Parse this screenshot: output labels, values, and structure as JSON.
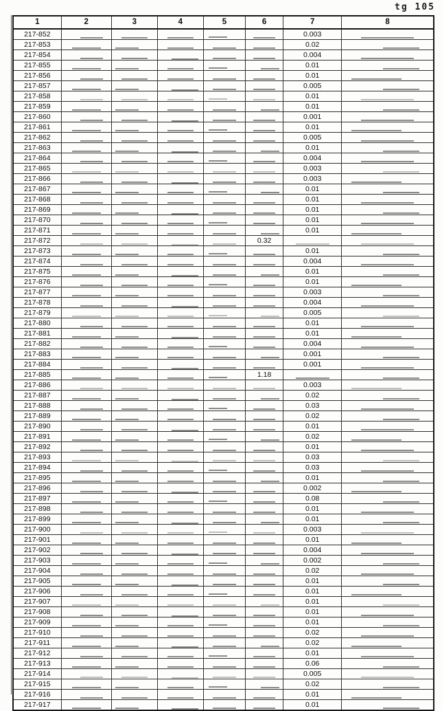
{
  "stamp": "tg 105",
  "table": {
    "headers": [
      "1",
      "2",
      "3",
      "4",
      "5",
      "6",
      "7",
      "8"
    ],
    "rows": [
      {
        "label": "217-852",
        "c6": "",
        "c7": "0.003"
      },
      {
        "label": "217-853",
        "c6": "",
        "c7": "0.02"
      },
      {
        "label": "217-854",
        "c6": "",
        "c7": "0.004"
      },
      {
        "label": "217-855",
        "c6": "",
        "c7": "0.01"
      },
      {
        "label": "217-856",
        "c6": "",
        "c7": "0.01"
      },
      {
        "label": "217-857",
        "c6": "",
        "c7": "0.005"
      },
      {
        "label": "217-858",
        "c6": "",
        "c7": "0.01"
      },
      {
        "label": "217-859",
        "c6": "",
        "c7": "0.01"
      },
      {
        "label": "217-860",
        "c6": "",
        "c7": "0.001"
      },
      {
        "label": "217-861",
        "c6": "",
        "c7": "0.01"
      },
      {
        "label": "217-862",
        "c6": "",
        "c7": "0.005"
      },
      {
        "label": "217-863",
        "c6": "",
        "c7": "0.01"
      },
      {
        "label": "217-864",
        "c6": "",
        "c7": "0.004"
      },
      {
        "label": "217-865",
        "c6": "",
        "c7": "0.003"
      },
      {
        "label": "217-866",
        "c6": "",
        "c7": "0.003"
      },
      {
        "label": "217-867",
        "c6": "",
        "c7": "0.01"
      },
      {
        "label": "217-868",
        "c6": "",
        "c7": "0.01"
      },
      {
        "label": "217-869",
        "c6": "",
        "c7": "0.01"
      },
      {
        "label": "217-870",
        "c6": "",
        "c7": "0.01"
      },
      {
        "label": "217-871",
        "c6": "",
        "c7": "0.01"
      },
      {
        "label": "217-872",
        "c6": "0.32",
        "c7": ""
      },
      {
        "label": "217-873",
        "c6": "",
        "c7": "0.01"
      },
      {
        "label": "217-874",
        "c6": "",
        "c7": "0.004"
      },
      {
        "label": "217-875",
        "c6": "",
        "c7": "0.01"
      },
      {
        "label": "217-876",
        "c6": "",
        "c7": "0.01"
      },
      {
        "label": "217-877",
        "c6": "",
        "c7": "0.003"
      },
      {
        "label": "217-878",
        "c6": "",
        "c7": "0.004"
      },
      {
        "label": "217-879",
        "c6": "",
        "c7": "0.005"
      },
      {
        "label": "217-880",
        "c6": "",
        "c7": "0.01"
      },
      {
        "label": "217-881",
        "c6": "",
        "c7": "0.01"
      },
      {
        "label": "217-882",
        "c6": "",
        "c7": "0.004"
      },
      {
        "label": "217-883",
        "c6": "",
        "c7": "0.001"
      },
      {
        "label": "217-884",
        "c6": "",
        "c7": "0.001"
      },
      {
        "label": "217-885",
        "c6": "1.18",
        "c7": ""
      },
      {
        "label": "217-886",
        "c6": "",
        "c7": "0.003"
      },
      {
        "label": "217-887",
        "c6": "",
        "c7": "0.02"
      },
      {
        "label": "217-888",
        "c6": "",
        "c7": "0.03"
      },
      {
        "label": "217-889",
        "c6": "",
        "c7": "0.02"
      },
      {
        "label": "217-890",
        "c6": "",
        "c7": "0.01"
      },
      {
        "label": "217-891",
        "c6": "",
        "c7": "0.02"
      },
      {
        "label": "217-892",
        "c6": "",
        "c7": "0.01"
      },
      {
        "label": "217-893",
        "c6": "",
        "c7": "0.03"
      },
      {
        "label": "217-894",
        "c6": "",
        "c7": "0.03"
      },
      {
        "label": "217-895",
        "c6": "",
        "c7": "0.01"
      },
      {
        "label": "217-896",
        "c6": "",
        "c7": "0.002"
      },
      {
        "label": "217-897",
        "c6": "",
        "c7": "0.08"
      },
      {
        "label": "217-898",
        "c6": "",
        "c7": "0.01"
      },
      {
        "label": "217-899",
        "c6": "",
        "c7": "0.01"
      },
      {
        "label": "217-900",
        "c6": "",
        "c7": "0.003"
      },
      {
        "label": "217-901",
        "c6": "",
        "c7": "0.01"
      },
      {
        "label": "217-902",
        "c6": "",
        "c7": "0.004"
      },
      {
        "label": "217-903",
        "c6": "",
        "c7": "0.002"
      },
      {
        "label": "217-904",
        "c6": "",
        "c7": "0.02"
      },
      {
        "label": "217-905",
        "c6": "",
        "c7": "0.01"
      },
      {
        "label": "217-906",
        "c6": "",
        "c7": "0.01"
      },
      {
        "label": "217-907",
        "c6": "",
        "c7": "0.01"
      },
      {
        "label": "217-908",
        "c6": "",
        "c7": "0.01"
      },
      {
        "label": "217-909",
        "c6": "",
        "c7": "0.01"
      },
      {
        "label": "217-910",
        "c6": "",
        "c7": "0.02"
      },
      {
        "label": "217-911",
        "c6": "",
        "c7": "0.02"
      },
      {
        "label": "217-912",
        "c6": "",
        "c7": "0.01"
      },
      {
        "label": "217-913",
        "c6": "",
        "c7": "0.06"
      },
      {
        "label": "217-914",
        "c6": "",
        "c7": "0.005"
      },
      {
        "label": "217-915",
        "c6": "",
        "c7": "0.02"
      },
      {
        "label": "217-916",
        "c6": "",
        "c7": "0.01"
      },
      {
        "label": "217-917",
        "c6": "",
        "c7": "0.01"
      }
    ]
  }
}
